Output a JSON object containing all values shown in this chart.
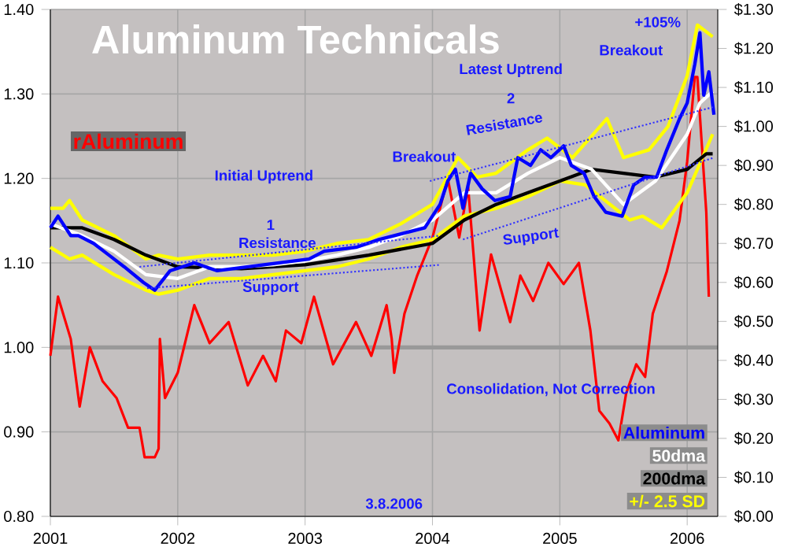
{
  "chart_data": {
    "type": "line",
    "title": "Aluminum Technicals",
    "xlim": [
      2001,
      2006.24
    ],
    "xticks": [
      2001,
      2002,
      2003,
      2004,
      2005,
      2006
    ],
    "ylim": [
      0.8,
      1.4
    ],
    "yticks": [
      {
        "value": 0.8,
        "label": "0.80"
      },
      {
        "value": 0.9,
        "label": "0.90"
      },
      {
        "value": 1.0,
        "label": "1.00"
      },
      {
        "value": 1.1,
        "label": "1.10"
      },
      {
        "value": 1.2,
        "label": "1.20"
      },
      {
        "value": 1.3,
        "label": "1.30"
      },
      {
        "value": 1.4,
        "label": "1.40"
      }
    ],
    "y2lim": [
      0,
      1.3
    ],
    "y2ticks": [
      {
        "value": 0,
        "label": "$0.00"
      },
      {
        "value": 0.1,
        "label": "$0.10"
      },
      {
        "value": 0.2,
        "label": "$0.20"
      },
      {
        "value": 0.3,
        "label": "$0.30"
      },
      {
        "value": 0.4,
        "label": "$0.40"
      },
      {
        "value": 0.5,
        "label": "$0.50"
      },
      {
        "value": 0.6,
        "label": "$0.60"
      },
      {
        "value": 0.7,
        "label": "$0.70"
      },
      {
        "value": 0.8,
        "label": "$0.80"
      },
      {
        "value": 0.9,
        "label": "$0.90"
      },
      {
        "value": 1.0,
        "label": "$1.00"
      },
      {
        "value": 1.1,
        "label": "$1.10"
      },
      {
        "value": 1.2,
        "label": "$1.20"
      },
      {
        "value": 1.3,
        "label": "$1.30"
      }
    ],
    "grid": true,
    "ref_lines": [
      {
        "axis": "y",
        "value": 1.0,
        "color": "#999999"
      }
    ],
    "series": [
      {
        "name": "rAluminum",
        "color": "#ff0000",
        "x": [
          2001.0,
          2001.06,
          2001.16,
          2001.23,
          2001.31,
          2001.41,
          2001.52,
          2001.61,
          2001.7,
          2001.74,
          2001.82,
          2001.85,
          2001.86,
          2001.9,
          2002.0,
          2002.13,
          2002.25,
          2002.4,
          2002.55,
          2002.67,
          2002.77,
          2002.85,
          2002.97,
          2003.07,
          2003.22,
          2003.4,
          2003.52,
          2003.64,
          2003.68,
          2003.7,
          2003.78,
          2003.88,
          2004.0,
          2004.12,
          2004.21,
          2004.28,
          2004.37,
          2004.46,
          2004.61,
          2004.69,
          2004.79,
          2004.91,
          2005.03,
          2005.15,
          2005.24,
          2005.31,
          2005.39,
          2005.46,
          2005.52,
          2005.6,
          2005.67,
          2005.73,
          2005.84,
          2005.94,
          2006.0,
          2006.06,
          2006.08,
          2006.15,
          2006.17
        ],
        "values": [
          0.99,
          1.06,
          1.01,
          0.93,
          1.0,
          0.96,
          0.94,
          0.905,
          0.905,
          0.87,
          0.87,
          0.88,
          1.01,
          0.94,
          0.97,
          1.05,
          1.005,
          1.03,
          0.955,
          0.99,
          0.96,
          1.02,
          1.005,
          1.06,
          0.98,
          1.03,
          0.99,
          1.05,
          1.01,
          0.97,
          1.04,
          1.085,
          1.13,
          1.2,
          1.13,
          1.19,
          1.02,
          1.11,
          1.03,
          1.085,
          1.055,
          1.1,
          1.075,
          1.1,
          1.02,
          0.925,
          0.91,
          0.89,
          0.945,
          0.98,
          0.965,
          1.04,
          1.09,
          1.15,
          1.22,
          1.32,
          1.32,
          1.16,
          1.06
        ]
      },
      {
        "name": "+/- 2.5 SD",
        "color": "#ffff00",
        "axis": "y2",
        "x": [
          2001.0,
          2001.1,
          2001.15,
          2001.25,
          2001.5,
          2001.75,
          2001.85,
          2002.0,
          2002.25,
          2002.5,
          2002.75,
          2003.0,
          2003.25,
          2003.5,
          2003.75,
          2004.0,
          2004.2,
          2004.35,
          2004.5,
          2004.75,
          2004.9,
          2005.1,
          2005.37,
          2005.5,
          2005.7,
          2005.85,
          2006.0,
          2006.08,
          2006.2
        ],
        "values": [
          0.79,
          0.79,
          0.81,
          0.76,
          0.72,
          0.66,
          0.67,
          0.66,
          0.67,
          0.67,
          0.67,
          0.68,
          0.7,
          0.71,
          0.75,
          0.8,
          0.92,
          0.87,
          0.88,
          0.94,
          0.97,
          0.92,
          1.02,
          0.92,
          0.94,
          1.0,
          1.13,
          1.26,
          1.23
        ]
      },
      {
        "color": "#ffff00",
        "axis": "y2",
        "x": [
          2001.0,
          2001.15,
          2001.25,
          2001.5,
          2001.75,
          2001.85,
          2002.0,
          2002.25,
          2002.5,
          2002.75,
          2003.0,
          2003.25,
          2003.5,
          2003.75,
          2004.0,
          2004.25,
          2004.5,
          2004.75,
          2005.0,
          2005.2,
          2005.55,
          2005.65,
          2005.8,
          2006.0,
          2006.2
        ],
        "values": [
          0.69,
          0.66,
          0.67,
          0.62,
          0.58,
          0.57,
          0.58,
          0.61,
          0.61,
          0.62,
          0.63,
          0.64,
          0.66,
          0.69,
          0.71,
          0.77,
          0.79,
          0.82,
          0.86,
          0.85,
          0.76,
          0.77,
          0.74,
          0.83,
          0.98
        ]
      },
      {
        "name": "200dma",
        "color": "#000000",
        "axis": "y2",
        "x": [
          2001.0,
          2001.25,
          2001.5,
          2001.75,
          2002.0,
          2002.5,
          2003.0,
          2003.5,
          2004.0,
          2004.25,
          2004.5,
          2004.75,
          2005.0,
          2005.25,
          2005.5,
          2005.75,
          2006.0,
          2006.15,
          2006.2
        ],
        "values": [
          0.74,
          0.74,
          0.71,
          0.67,
          0.64,
          0.635,
          0.645,
          0.67,
          0.7,
          0.76,
          0.8,
          0.83,
          0.86,
          0.89,
          0.88,
          0.87,
          0.89,
          0.93,
          0.93
        ]
      },
      {
        "name": "50dma",
        "color": "#ffffff",
        "axis": "y2",
        "x": [
          2001.0,
          2001.25,
          2001.5,
          2001.75,
          2002.0,
          2002.25,
          2002.5,
          2002.75,
          2003.0,
          2003.25,
          2003.5,
          2003.75,
          2004.0,
          2004.25,
          2004.5,
          2004.75,
          2005.0,
          2005.25,
          2005.5,
          2005.75,
          2006.0,
          2006.1,
          2006.2
        ],
        "values": [
          0.75,
          0.72,
          0.68,
          0.62,
          0.61,
          0.64,
          0.64,
          0.645,
          0.655,
          0.67,
          0.69,
          0.72,
          0.76,
          0.83,
          0.83,
          0.88,
          0.92,
          0.89,
          0.8,
          0.86,
          0.98,
          1.06,
          1.09
        ]
      },
      {
        "name": "Aluminum",
        "color": "#0000ff",
        "axis": "y2",
        "x": [
          2001.0,
          2001.06,
          2001.16,
          2001.22,
          2001.34,
          2001.46,
          2001.58,
          2001.73,
          2001.82,
          2001.94,
          2002.13,
          2002.31,
          2002.55,
          2002.79,
          2003.03,
          2003.15,
          2003.4,
          2003.58,
          2003.7,
          2003.82,
          2003.94,
          2004.06,
          2004.12,
          2004.18,
          2004.24,
          2004.3,
          2004.39,
          2004.49,
          2004.61,
          2004.67,
          2004.77,
          2004.85,
          2004.93,
          2005.03,
          2005.09,
          2005.19,
          2005.27,
          2005.36,
          2005.49,
          2005.58,
          2005.67,
          2005.76,
          2005.84,
          2005.94,
          2006.0,
          2006.06,
          2006.1,
          2006.13,
          2006.17,
          2006.21
        ],
        "values": [
          0.74,
          0.77,
          0.72,
          0.72,
          0.7,
          0.67,
          0.64,
          0.6,
          0.58,
          0.63,
          0.65,
          0.63,
          0.64,
          0.65,
          0.66,
          0.68,
          0.69,
          0.71,
          0.72,
          0.73,
          0.74,
          0.8,
          0.86,
          0.89,
          0.79,
          0.88,
          0.84,
          0.81,
          0.82,
          0.92,
          0.9,
          0.94,
          0.92,
          0.95,
          0.9,
          0.88,
          0.82,
          0.78,
          0.77,
          0.85,
          0.87,
          0.87,
          0.94,
          1.02,
          1.06,
          1.16,
          1.24,
          1.08,
          1.14,
          1.03
        ]
      },
      {
        "color": "#3333ff",
        "axis": "y2",
        "line_style": "dotted",
        "x": [
          2001.7,
          2004.06
        ],
        "values": [
          0.64,
          0.72
        ]
      },
      {
        "color": "#3333ff",
        "axis": "y2",
        "line_style": "dotted",
        "x": [
          2001.76,
          2004.06
        ],
        "values": [
          0.585,
          0.645
        ]
      },
      {
        "color": "#3333ff",
        "axis": "y2",
        "line_style": "dotted",
        "x": [
          2003.98,
          2006.21
        ],
        "values": [
          0.86,
          1.05
        ]
      },
      {
        "color": "#3333ff",
        "axis": "y2",
        "line_style": "dotted",
        "x": [
          2004.24,
          2006.21
        ],
        "values": [
          0.71,
          0.92
        ]
      }
    ],
    "annotations": [
      "Initial Uptrend",
      "1",
      "Resistance",
      "Support",
      "Breakout",
      "Latest Uptrend",
      "2",
      "Resistance",
      "Support",
      "Breakout",
      "+105%",
      "Consolidation, Not Correction",
      "3.8.2006"
    ]
  }
}
